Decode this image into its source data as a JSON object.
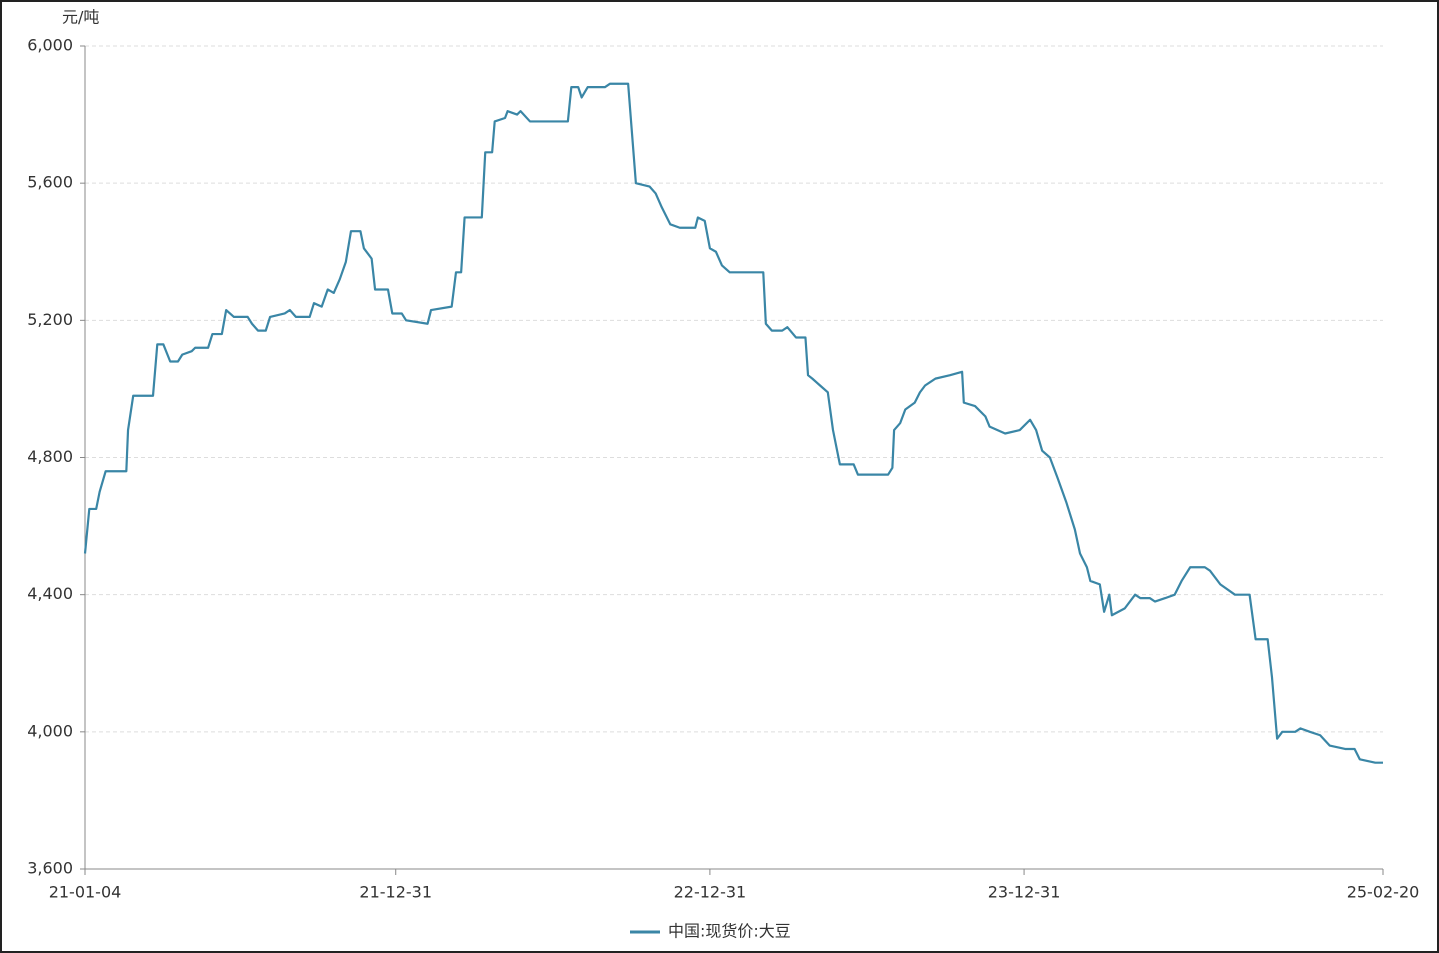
{
  "chart_data": {
    "type": "line",
    "y_label": "元/吨",
    "x": [
      "21-01-04",
      "21-01-09",
      "21-01-17",
      "21-01-21",
      "21-01-28",
      "21-02-21",
      "21-02-23",
      "21-03-01",
      "21-03-24",
      "21-03-29",
      "21-04-05",
      "21-04-13",
      "21-04-22",
      "21-04-27",
      "21-05-08",
      "21-05-12",
      "21-05-27",
      "21-06-01",
      "21-06-12",
      "21-06-17",
      "21-06-26",
      "21-07-12",
      "21-07-17",
      "21-07-24",
      "21-08-02",
      "21-08-07",
      "21-08-24",
      "21-08-30",
      "21-09-06",
      "21-09-22",
      "21-09-27",
      "21-10-06",
      "21-10-13",
      "21-10-20",
      "21-10-27",
      "21-11-03",
      "21-11-09",
      "21-11-20",
      "21-11-24",
      "21-12-03",
      "21-12-07",
      "21-12-22",
      "21-12-27",
      "22-01-07",
      "22-01-12",
      "22-02-06",
      "22-02-10",
      "22-03-06",
      "22-03-11",
      "22-03-17",
      "22-03-21",
      "22-04-10",
      "22-04-14",
      "22-04-22",
      "22-04-25",
      "22-05-07",
      "22-05-10",
      "22-05-21",
      "22-05-25",
      "22-06-05",
      "22-07-19",
      "22-07-23",
      "22-07-31",
      "22-08-04",
      "22-08-11",
      "22-08-31",
      "22-09-06",
      "22-09-27",
      "22-10-06",
      "22-10-22",
      "22-10-29",
      "22-11-05",
      "22-11-15",
      "22-11-26",
      "22-12-14",
      "22-12-17",
      "22-12-25",
      "22-12-31",
      "23-01-07",
      "23-01-14",
      "23-01-23",
      "23-03-03",
      "23-03-06",
      "23-03-13",
      "23-03-25",
      "23-03-31",
      "23-04-10",
      "23-04-21",
      "23-04-24",
      "23-04-29",
      "23-05-08",
      "23-05-17",
      "23-05-23",
      "23-05-31",
      "23-06-16",
      "23-06-21",
      "23-07-26",
      "23-07-31",
      "23-08-02",
      "23-08-09",
      "23-08-15",
      "23-08-26",
      "23-09-01",
      "23-09-07",
      "23-09-19",
      "23-10-06",
      "23-10-20",
      "23-10-22",
      "23-11-04",
      "23-11-16",
      "23-11-21",
      "23-12-09",
      "23-12-26",
      "24-01-07",
      "24-01-14",
      "24-01-21",
      "24-01-30",
      "24-02-08",
      "24-02-18",
      "24-02-28",
      "24-03-05",
      "24-03-13",
      "24-03-17",
      "24-03-28",
      "24-04-02",
      "24-04-08",
      "24-04-11",
      "24-04-26",
      "24-05-08",
      "24-05-14",
      "24-05-25",
      "24-05-31",
      "24-06-12",
      "24-06-23",
      "24-07-01",
      "24-07-11",
      "24-07-28",
      "24-08-03",
      "24-08-15",
      "24-09-01",
      "24-09-18",
      "24-09-25",
      "24-10-09",
      "24-10-14",
      "24-10-20",
      "24-10-26",
      "24-11-10",
      "24-11-16",
      "24-11-27",
      "24-12-09",
      "24-12-20",
      "25-01-07",
      "25-01-18",
      "25-01-24",
      "25-02-11",
      "25-02-20"
    ],
    "series": [
      {
        "name": "中国:现货价:大豆",
        "color": "#3a86a6",
        "values": [
          4520,
          4650,
          4650,
          4700,
          4760,
          4760,
          4880,
          4980,
          4980,
          5130,
          5130,
          5080,
          5080,
          5100,
          5110,
          5120,
          5120,
          5160,
          5160,
          5230,
          5210,
          5210,
          5190,
          5170,
          5170,
          5210,
          5220,
          5230,
          5210,
          5210,
          5250,
          5240,
          5290,
          5280,
          5320,
          5370,
          5460,
          5460,
          5410,
          5380,
          5290,
          5290,
          5220,
          5220,
          5200,
          5190,
          5230,
          5240,
          5340,
          5340,
          5500,
          5500,
          5690,
          5690,
          5780,
          5790,
          5810,
          5800,
          5810,
          5780,
          5780,
          5880,
          5880,
          5850,
          5880,
          5880,
          5890,
          5890,
          5600,
          5590,
          5570,
          5530,
          5480,
          5470,
          5470,
          5500,
          5490,
          5410,
          5400,
          5360,
          5340,
          5340,
          5190,
          5170,
          5170,
          5180,
          5150,
          5150,
          5040,
          5030,
          5010,
          4990,
          4880,
          4780,
          4780,
          4750,
          4750,
          4770,
          4880,
          4900,
          4940,
          4960,
          4990,
          5010,
          5030,
          5040,
          5050,
          4960,
          4950,
          4920,
          4890,
          4870,
          4880,
          4910,
          4880,
          4820,
          4800,
          4740,
          4670,
          4590,
          4520,
          4480,
          4440,
          4430,
          4350,
          4400,
          4340,
          4360,
          4400,
          4390,
          4390,
          4380,
          4390,
          4400,
          4440,
          4480,
          4480,
          4470,
          4430,
          4400,
          4400,
          4270,
          4270,
          4160,
          3980,
          4000,
          4000,
          4010,
          4000,
          3990,
          3960,
          3950,
          3950,
          3920,
          3910,
          3910
        ]
      }
    ],
    "xlim": [
      "21-01-04",
      "25-02-20"
    ],
    "xticks": [
      "21-01-04",
      "21-12-31",
      "22-12-31",
      "23-12-31",
      "25-02-20"
    ],
    "ylim": [
      3600,
      6000
    ],
    "yticks": [
      {
        "value": 3600,
        "label": "3,600"
      },
      {
        "value": 4000,
        "label": "4,000"
      },
      {
        "value": 4400,
        "label": "4,400"
      },
      {
        "value": 4800,
        "label": "4,800"
      },
      {
        "value": 5200,
        "label": "5,200"
      },
      {
        "value": 5600,
        "label": "5,600"
      },
      {
        "value": 6000,
        "label": "6,000"
      }
    ],
    "grid": true,
    "legend": "bottom"
  }
}
